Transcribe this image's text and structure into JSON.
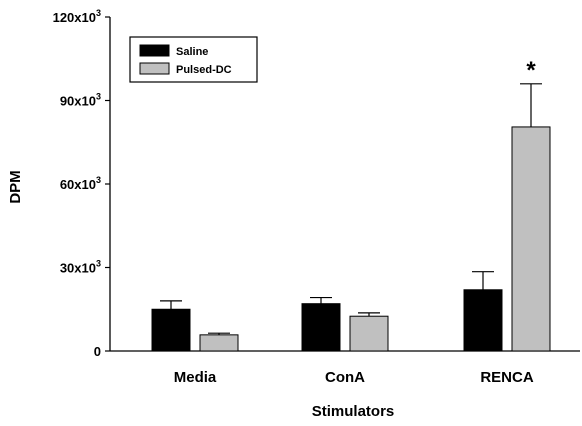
{
  "chart_data": {
    "type": "bar",
    "title": "",
    "xlabel": "Stimulators",
    "ylabel": "DPM",
    "categories": [
      "Media",
      "ConA",
      "RENCA"
    ],
    "series": [
      {
        "name": "Saline",
        "color": "#000000",
        "values": [
          15000,
          17000,
          22000
        ],
        "errors": [
          3000,
          2200,
          6500
        ]
      },
      {
        "name": "Pulsed-DC",
        "color": "#c0c0c0",
        "values": [
          5800,
          12500,
          80500
        ],
        "errors": [
          600,
          1200,
          15500
        ]
      }
    ],
    "ylim": [
      0,
      120000
    ],
    "yticks": [
      {
        "value": 0,
        "base": "0",
        "sup": ""
      },
      {
        "value": 30000,
        "base": "30x10",
        "sup": "3"
      },
      {
        "value": 60000,
        "base": "60x10",
        "sup": "3"
      },
      {
        "value": 90000,
        "base": "90x10",
        "sup": "3"
      },
      {
        "value": 120000,
        "base": "120x10",
        "sup": "3"
      }
    ],
    "annotations": [
      {
        "text": "*",
        "category": "RENCA",
        "series": "Pulsed-DC"
      }
    ],
    "legend_position": "top-left",
    "grid": false
  }
}
